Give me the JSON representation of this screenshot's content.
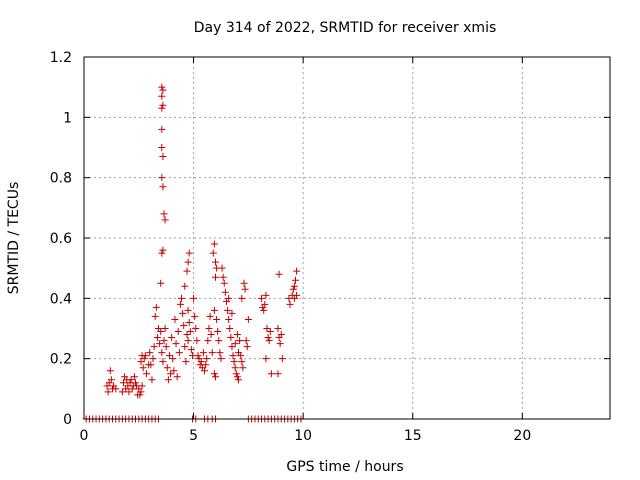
{
  "chart_data": {
    "type": "scatter",
    "title": "Day 314 of 2022, SRMTID for receiver xmis",
    "xlabel": "GPS time / hours",
    "ylabel": "SRMTID / TECUs",
    "xlim": [
      0,
      24
    ],
    "ylim": [
      0,
      1.2
    ],
    "xticks": [
      0,
      5,
      10,
      15,
      20
    ],
    "yticks": [
      0,
      0.2,
      0.4,
      0.6,
      0.8,
      1,
      1.2
    ],
    "xtick_labels": [
      "0",
      "5",
      "10",
      "15",
      "20"
    ],
    "ytick_labels": [
      "0",
      "0.2",
      "0.4",
      "0.6",
      "0.8",
      "1",
      "1.2"
    ],
    "grid": true,
    "marker": "+",
    "marker_color": "#cc0000",
    "series": [
      {
        "name": "SRMTID",
        "points": [
          [
            0.1,
            0
          ],
          [
            0.25,
            0
          ],
          [
            0.4,
            0
          ],
          [
            0.55,
            0
          ],
          [
            0.7,
            0
          ],
          [
            0.85,
            0
          ],
          [
            1.0,
            0
          ],
          [
            1.15,
            0
          ],
          [
            1.3,
            0
          ],
          [
            1.45,
            0
          ],
          [
            1.6,
            0
          ],
          [
            1.75,
            0
          ],
          [
            1.9,
            0
          ],
          [
            2.05,
            0
          ],
          [
            2.2,
            0
          ],
          [
            2.35,
            0
          ],
          [
            2.5,
            0
          ],
          [
            2.65,
            0
          ],
          [
            2.8,
            0
          ],
          [
            2.95,
            0
          ],
          [
            3.1,
            0
          ],
          [
            3.25,
            0
          ],
          [
            3.4,
            0
          ],
          [
            4.95,
            0
          ],
          [
            5.1,
            0
          ],
          [
            5.5,
            0
          ],
          [
            5.65,
            0
          ],
          [
            5.85,
            0
          ],
          [
            6.0,
            0
          ],
          [
            7.5,
            0
          ],
          [
            7.65,
            0
          ],
          [
            7.8,
            0
          ],
          [
            7.95,
            0
          ],
          [
            8.1,
            0
          ],
          [
            8.25,
            0
          ],
          [
            8.4,
            0
          ],
          [
            8.55,
            0
          ],
          [
            8.7,
            0
          ],
          [
            8.85,
            0
          ],
          [
            9.0,
            0
          ],
          [
            9.15,
            0
          ],
          [
            9.3,
            0
          ],
          [
            9.45,
            0
          ],
          [
            9.6,
            0
          ],
          [
            9.75,
            0
          ],
          [
            9.9,
            0
          ],
          [
            1.05,
            0.11
          ],
          [
            1.1,
            0.09
          ],
          [
            1.15,
            0.12
          ],
          [
            1.2,
            0.16
          ],
          [
            1.25,
            0.13
          ],
          [
            1.3,
            0.1
          ],
          [
            1.35,
            0.11
          ],
          [
            1.45,
            0.1
          ],
          [
            1.75,
            0.09
          ],
          [
            1.8,
            0.12
          ],
          [
            1.85,
            0.14
          ],
          [
            1.9,
            0.1
          ],
          [
            1.95,
            0.13
          ],
          [
            2.0,
            0.11
          ],
          [
            2.05,
            0.09
          ],
          [
            2.1,
            0.12
          ],
          [
            2.15,
            0.13
          ],
          [
            2.2,
            0.1
          ],
          [
            2.25,
            0.11
          ],
          [
            2.3,
            0.14
          ],
          [
            2.35,
            0.12
          ],
          [
            2.4,
            0.11
          ],
          [
            2.45,
            0.08
          ],
          [
            2.5,
            0.1
          ],
          [
            2.55,
            0.08
          ],
          [
            2.6,
            0.09
          ],
          [
            2.65,
            0.11
          ],
          [
            2.6,
            0.19
          ],
          [
            2.65,
            0.21
          ],
          [
            2.7,
            0.17
          ],
          [
            2.75,
            0.2
          ],
          [
            2.8,
            0.21
          ],
          [
            2.85,
            0.15
          ],
          [
            2.95,
            0.18
          ],
          [
            3.0,
            0.22
          ],
          [
            3.05,
            0.18
          ],
          [
            3.1,
            0.13
          ],
          [
            3.15,
            0.2
          ],
          [
            3.2,
            0.24
          ],
          [
            3.25,
            0.34
          ],
          [
            3.3,
            0.37
          ],
          [
            3.35,
            0.27
          ],
          [
            3.4,
            0.3
          ],
          [
            3.45,
            0.25
          ],
          [
            3.5,
            0.29
          ],
          [
            3.55,
            0.22
          ],
          [
            3.6,
            0.19
          ],
          [
            3.65,
            0.26
          ],
          [
            3.5,
            0.45
          ],
          [
            3.55,
            0.55
          ],
          [
            3.6,
            0.56
          ],
          [
            3.65,
            0.68
          ],
          [
            3.7,
            0.66
          ],
          [
            3.55,
            0.8
          ],
          [
            3.6,
            0.77
          ],
          [
            3.55,
            0.9
          ],
          [
            3.6,
            0.87
          ],
          [
            3.55,
            0.96
          ],
          [
            3.55,
            1.03
          ],
          [
            3.6,
            1.04
          ],
          [
            3.55,
            1.07
          ],
          [
            3.6,
            1.09
          ],
          [
            3.55,
            1.1
          ],
          [
            3.7,
            0.3
          ],
          [
            3.75,
            0.24
          ],
          [
            3.8,
            0.17
          ],
          [
            3.85,
            0.13
          ],
          [
            3.9,
            0.21
          ],
          [
            3.95,
            0.15
          ],
          [
            4.0,
            0.27
          ],
          [
            4.05,
            0.2
          ],
          [
            4.1,
            0.16
          ],
          [
            4.15,
            0.33
          ],
          [
            4.2,
            0.25
          ],
          [
            4.25,
            0.14
          ],
          [
            4.3,
            0.29
          ],
          [
            4.35,
            0.22
          ],
          [
            4.4,
            0.38
          ],
          [
            4.45,
            0.4
          ],
          [
            4.5,
            0.35
          ],
          [
            4.55,
            0.31
          ],
          [
            4.6,
            0.24
          ],
          [
            4.65,
            0.19
          ],
          [
            4.7,
            0.28
          ],
          [
            4.75,
            0.26
          ],
          [
            4.8,
            0.32
          ],
          [
            4.85,
            0.29
          ],
          [
            4.9,
            0.23
          ],
          [
            4.95,
            0.21
          ],
          [
            4.6,
            0.44
          ],
          [
            4.7,
            0.49
          ],
          [
            4.75,
            0.52
          ],
          [
            4.8,
            0.55
          ],
          [
            4.75,
            0.36
          ],
          [
            5.0,
            0.4
          ],
          [
            5.05,
            0.34
          ],
          [
            5.1,
            0.3
          ],
          [
            5.15,
            0.26
          ],
          [
            5.2,
            0.21
          ],
          [
            5.25,
            0.2
          ],
          [
            5.3,
            0.18
          ],
          [
            5.35,
            0.19
          ],
          [
            5.4,
            0.17
          ],
          [
            5.45,
            0.22
          ],
          [
            5.5,
            0.16
          ],
          [
            5.55,
            0.18
          ],
          [
            5.6,
            0.2
          ],
          [
            5.65,
            0.26
          ],
          [
            5.7,
            0.3
          ],
          [
            5.75,
            0.34
          ],
          [
            5.8,
            0.28
          ],
          [
            5.85,
            0.22
          ],
          [
            5.9,
            0.55
          ],
          [
            5.95,
            0.58
          ],
          [
            6.0,
            0.52
          ],
          [
            6.05,
            0.5
          ],
          [
            6.0,
            0.47
          ],
          [
            5.95,
            0.36
          ],
          [
            6.05,
            0.33
          ],
          [
            6.1,
            0.29
          ],
          [
            6.15,
            0.26
          ],
          [
            6.2,
            0.22
          ],
          [
            6.25,
            0.2
          ],
          [
            5.95,
            0.15
          ],
          [
            6.0,
            0.14
          ],
          [
            6.3,
            0.5
          ],
          [
            6.35,
            0.47
          ],
          [
            6.4,
            0.45
          ],
          [
            6.45,
            0.42
          ],
          [
            6.5,
            0.39
          ],
          [
            6.55,
            0.36
          ],
          [
            6.6,
            0.33
          ],
          [
            6.65,
            0.3
          ],
          [
            6.7,
            0.27
          ],
          [
            6.75,
            0.24
          ],
          [
            6.8,
            0.21
          ],
          [
            6.85,
            0.19
          ],
          [
            6.9,
            0.17
          ],
          [
            6.95,
            0.15
          ],
          [
            7.0,
            0.14
          ],
          [
            7.05,
            0.13
          ],
          [
            6.6,
            0.4
          ],
          [
            6.75,
            0.35
          ],
          [
            6.9,
            0.25
          ],
          [
            7.0,
            0.28
          ],
          [
            7.05,
            0.22
          ],
          [
            7.1,
            0.26
          ],
          [
            7.15,
            0.21
          ],
          [
            7.2,
            0.19
          ],
          [
            7.25,
            0.17
          ],
          [
            7.2,
            0.4
          ],
          [
            7.3,
            0.45
          ],
          [
            7.35,
            0.43
          ],
          [
            7.5,
            0.33
          ],
          [
            7.4,
            0.26
          ],
          [
            7.45,
            0.24
          ],
          [
            8.1,
            0.4
          ],
          [
            8.15,
            0.37
          ],
          [
            8.2,
            0.36
          ],
          [
            8.25,
            0.38
          ],
          [
            8.3,
            0.41
          ],
          [
            8.35,
            0.3
          ],
          [
            8.4,
            0.27
          ],
          [
            8.45,
            0.26
          ],
          [
            8.5,
            0.29
          ],
          [
            8.55,
            0.15
          ],
          [
            8.3,
            0.2
          ],
          [
            8.85,
            0.3
          ],
          [
            8.9,
            0.27
          ],
          [
            8.95,
            0.25
          ],
          [
            9.0,
            0.28
          ],
          [
            9.05,
            0.2
          ],
          [
            8.85,
            0.15
          ],
          [
            8.9,
            0.48
          ],
          [
            9.35,
            0.4
          ],
          [
            9.4,
            0.38
          ],
          [
            9.5,
            0.41
          ],
          [
            9.55,
            0.43
          ],
          [
            9.6,
            0.44
          ],
          [
            9.65,
            0.46
          ],
          [
            9.7,
            0.49
          ],
          [
            9.6,
            0.4
          ],
          [
            9.7,
            0.41
          ]
        ]
      }
    ]
  }
}
